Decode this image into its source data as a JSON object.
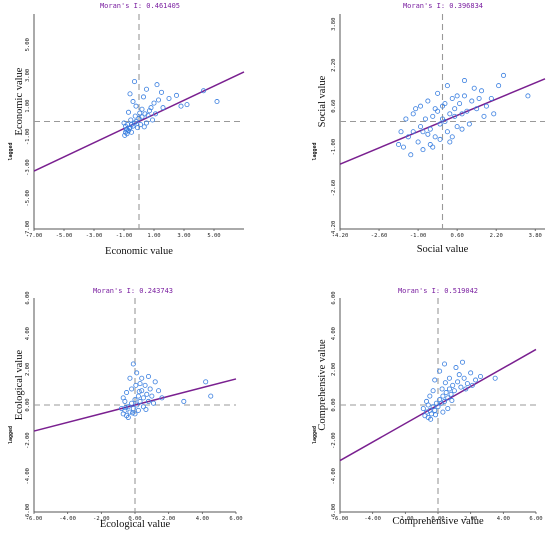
{
  "chart_data": [
    {
      "type": "scatter",
      "title": "Moran's I: 0.461405",
      "xlabel": "Economic value",
      "ylabel": "Economic value",
      "ylabel_prefix": "lagged",
      "xlim": [
        -7,
        7
      ],
      "ylim": [
        -7,
        7
      ],
      "xticks": [
        "-7.00",
        "-5.00",
        "-3.00",
        "-1.00",
        "1.00",
        "3.00",
        "5.00"
      ],
      "yticks": [
        "-7.00",
        "-5.00",
        "-3.00",
        "-1.00",
        "1.00",
        "3.00",
        "5.00"
      ],
      "slope": 0.461405,
      "colors": {
        "points": "#3a7fe0",
        "line": "#7a2090",
        "title": "#7a1fa0"
      },
      "points": [
        [
          -0.9,
          -0.7
        ],
        [
          -0.8,
          -0.5
        ],
        [
          -0.7,
          -0.6
        ],
        [
          -0.9,
          -0.3
        ],
        [
          -0.6,
          -0.4
        ],
        [
          -0.5,
          -0.2
        ],
        [
          -0.8,
          -0.8
        ],
        [
          -0.4,
          -0.3
        ],
        [
          -0.3,
          -0.1
        ],
        [
          -0.2,
          0.0
        ],
        [
          0.0,
          0.2
        ],
        [
          0.2,
          0.3
        ],
        [
          0.4,
          0.5
        ],
        [
          0.6,
          0.4
        ],
        [
          0.8,
          0.9
        ],
        [
          1.0,
          1.2
        ],
        [
          1.3,
          1.4
        ],
        [
          1.6,
          0.9
        ],
        [
          2.0,
          1.5
        ],
        [
          2.5,
          1.7
        ],
        [
          3.2,
          1.1
        ],
        [
          4.3,
          2.0
        ],
        [
          5.2,
          1.3
        ],
        [
          1.2,
          2.4
        ],
        [
          0.5,
          2.1
        ],
        [
          -0.6,
          1.8
        ],
        [
          -0.3,
          2.6
        ],
        [
          -0.7,
          0.6
        ],
        [
          -0.2,
          1.0
        ],
        [
          0.3,
          1.6
        ],
        [
          0.9,
          0.1
        ],
        [
          -1.0,
          -0.1
        ],
        [
          -0.95,
          -0.9
        ],
        [
          -0.5,
          -0.7
        ],
        [
          -0.1,
          -0.4
        ],
        [
          0.1,
          -0.2
        ],
        [
          0.7,
          0.7
        ],
        [
          1.5,
          1.9
        ],
        [
          -0.4,
          1.3
        ],
        [
          0.2,
          0.8
        ],
        [
          -0.75,
          -0.2
        ],
        [
          -0.65,
          -0.45
        ],
        [
          -0.55,
          0.1
        ],
        [
          -0.85,
          -0.55
        ],
        [
          0.5,
          -0.1
        ],
        [
          1.1,
          0.5
        ],
        [
          2.8,
          1.0
        ],
        [
          0.05,
          0.55
        ],
        [
          -0.25,
          0.35
        ],
        [
          0.35,
          -0.35
        ]
      ]
    },
    {
      "type": "scatter",
      "title": "Moran's I: 0.396834",
      "xlabel": "Social value",
      "ylabel": "Social value",
      "ylabel_prefix": "lagged",
      "xlim": [
        -4.2,
        4.2
      ],
      "ylim": [
        -4.2,
        4.2
      ],
      "xticks": [
        "-4.20",
        "-2.60",
        "-1.00",
        "0.60",
        "2.20",
        "3.80"
      ],
      "yticks": [
        "-4.20",
        "-2.60",
        "-1.00",
        "0.60",
        "2.20",
        "3.80"
      ],
      "slope": 0.396834,
      "colors": {
        "points": "#3a7fe0",
        "line": "#7a2090",
        "title": "#7a1fa0"
      },
      "points": [
        [
          -1.6,
          -1.0
        ],
        [
          -1.4,
          -0.6
        ],
        [
          -1.3,
          -1.3
        ],
        [
          -1.2,
          -0.4
        ],
        [
          -1.0,
          -0.8
        ],
        [
          -0.9,
          -0.2
        ],
        [
          -0.8,
          -1.1
        ],
        [
          -0.7,
          0.1
        ],
        [
          -0.6,
          -0.5
        ],
        [
          -0.5,
          -0.3
        ],
        [
          -0.4,
          0.2
        ],
        [
          -0.3,
          -0.6
        ],
        [
          -0.2,
          0.4
        ],
        [
          -0.1,
          -0.1
        ],
        [
          0.0,
          0.6
        ],
        [
          0.1,
          0.0
        ],
        [
          0.2,
          -0.4
        ],
        [
          0.3,
          0.3
        ],
        [
          0.4,
          0.9
        ],
        [
          0.5,
          0.2
        ],
        [
          0.6,
          -0.2
        ],
        [
          0.7,
          0.7
        ],
        [
          0.8,
          0.3
        ],
        [
          0.9,
          1.0
        ],
        [
          1.0,
          0.4
        ],
        [
          1.1,
          -0.1
        ],
        [
          1.2,
          0.8
        ],
        [
          1.4,
          0.5
        ],
        [
          1.6,
          1.2
        ],
        [
          1.8,
          0.6
        ],
        [
          2.0,
          0.9
        ],
        [
          2.3,
          1.4
        ],
        [
          2.5,
          1.8
        ],
        [
          3.5,
          1.0
        ],
        [
          -1.8,
          -0.9
        ],
        [
          -1.5,
          0.1
        ],
        [
          -1.1,
          0.5
        ],
        [
          -0.6,
          0.8
        ],
        [
          -0.2,
          1.1
        ],
        [
          0.2,
          1.4
        ],
        [
          0.6,
          1.0
        ],
        [
          0.3,
          -0.8
        ],
        [
          -0.4,
          -1.0
        ],
        [
          -1.2,
          0.3
        ],
        [
          -0.8,
          -0.4
        ],
        [
          0.0,
          0.1
        ],
        [
          0.4,
          -0.6
        ],
        [
          0.8,
          -0.3
        ],
        [
          1.3,
          1.3
        ],
        [
          1.7,
          0.2
        ],
        [
          -0.3,
          0.5
        ],
        [
          -0.9,
          0.6
        ],
        [
          0.9,
          1.6
        ],
        [
          1.5,
          0.9
        ],
        [
          -1.7,
          -0.4
        ],
        [
          -0.5,
          -0.9
        ],
        [
          0.1,
          0.7
        ],
        [
          0.5,
          0.5
        ],
        [
          -0.1,
          -0.7
        ],
        [
          2.1,
          0.3
        ]
      ]
    },
    {
      "type": "scatter",
      "title": "Moran's I: 0.243743",
      "xlabel": "Ecological value",
      "ylabel": "Ecological value",
      "ylabel_prefix": "lagged",
      "xlim": [
        -6,
        6
      ],
      "ylim": [
        -6,
        6
      ],
      "xticks": [
        "-6.00",
        "-4.00",
        "-2.00",
        "0.00",
        "2.00",
        "4.00",
        "6.00"
      ],
      "yticks": [
        "-6.00",
        "-4.00",
        "-2.00",
        "0.00",
        "2.00",
        "4.00",
        "6.00"
      ],
      "slope": 0.243743,
      "colors": {
        "points": "#3a7fe0",
        "line": "#7a2090",
        "title": "#7a1fa0"
      },
      "points": [
        [
          -0.7,
          -0.5
        ],
        [
          -0.6,
          -0.3
        ],
        [
          -0.5,
          -0.6
        ],
        [
          -0.4,
          -0.1
        ],
        [
          -0.3,
          -0.4
        ],
        [
          -0.2,
          0.1
        ],
        [
          -0.1,
          -0.2
        ],
        [
          0.0,
          0.3
        ],
        [
          0.1,
          0.0
        ],
        [
          0.2,
          0.5
        ],
        [
          0.3,
          0.2
        ],
        [
          0.4,
          0.8
        ],
        [
          0.5,
          0.4
        ],
        [
          0.6,
          1.1
        ],
        [
          0.7,
          0.6
        ],
        [
          0.8,
          0.2
        ],
        [
          0.9,
          0.9
        ],
        [
          1.0,
          0.5
        ],
        [
          1.2,
          1.3
        ],
        [
          1.4,
          0.8
        ],
        [
          -0.3,
          1.5
        ],
        [
          -0.1,
          2.3
        ],
        [
          0.1,
          1.8
        ],
        [
          0.3,
          1.2
        ],
        [
          -0.5,
          0.7
        ],
        [
          -0.6,
          0.2
        ],
        [
          -0.8,
          -0.2
        ],
        [
          2.9,
          0.2
        ],
        [
          4.2,
          1.3
        ],
        [
          4.5,
          0.5
        ],
        [
          -0.4,
          -0.7
        ],
        [
          0.0,
          -0.5
        ],
        [
          0.2,
          -0.3
        ],
        [
          0.5,
          -0.1
        ],
        [
          1.1,
          0.1
        ],
        [
          -0.2,
          0.9
        ],
        [
          0.4,
          1.5
        ],
        [
          0.8,
          1.6
        ],
        [
          -0.7,
          0.4
        ],
        [
          -0.15,
          -0.45
        ],
        [
          0.25,
          0.75
        ],
        [
          0.65,
          -0.25
        ],
        [
          1.6,
          0.4
        ],
        [
          -0.55,
          -0.15
        ],
        [
          0.05,
          1.1
        ]
      ]
    },
    {
      "type": "scatter",
      "title": "Moran's I: 0.519042",
      "xlabel": "Comprehensive value",
      "ylabel": "Comprehensive value",
      "ylabel_prefix": "lagged",
      "xlim": [
        -6,
        6
      ],
      "ylim": [
        -6,
        6
      ],
      "xticks": [
        "-6.00",
        "-4.00",
        "-2.00",
        "0.00",
        "2.00",
        "4.00",
        "6.00"
      ],
      "yticks": [
        "-6.00",
        "-4.00",
        "-2.00",
        "0.00",
        "2.00",
        "4.00",
        "6.00"
      ],
      "slope": 0.519042,
      "colors": {
        "points": "#3a7fe0",
        "line": "#7a2090",
        "title": "#7a1fa0"
      },
      "points": [
        [
          -0.8,
          -0.6
        ],
        [
          -0.7,
          -0.4
        ],
        [
          -0.6,
          -0.7
        ],
        [
          -0.5,
          -0.3
        ],
        [
          -0.4,
          -0.5
        ],
        [
          -0.3,
          -0.1
        ],
        [
          -0.2,
          -0.3
        ],
        [
          -0.1,
          0.1
        ],
        [
          0.0,
          -0.1
        ],
        [
          0.1,
          0.3
        ],
        [
          0.2,
          0.1
        ],
        [
          0.3,
          0.5
        ],
        [
          0.4,
          0.2
        ],
        [
          0.5,
          0.7
        ],
        [
          0.6,
          0.4
        ],
        [
          0.7,
          0.9
        ],
        [
          0.8,
          0.6
        ],
        [
          0.9,
          1.1
        ],
        [
          1.0,
          0.8
        ],
        [
          1.2,
          1.3
        ],
        [
          1.4,
          1.0
        ],
        [
          1.6,
          1.5
        ],
        [
          1.8,
          1.2
        ],
        [
          2.0,
          1.8
        ],
        [
          2.3,
          1.4
        ],
        [
          2.6,
          1.6
        ],
        [
          3.5,
          1.5
        ],
        [
          -0.2,
          1.4
        ],
        [
          0.1,
          1.9
        ],
        [
          0.4,
          2.3
        ],
        [
          1.1,
          2.1
        ],
        [
          1.5,
          2.4
        ],
        [
          -0.5,
          0.5
        ],
        [
          -0.7,
          0.2
        ],
        [
          -0.9,
          -0.2
        ],
        [
          0.3,
          -0.4
        ],
        [
          0.6,
          -0.2
        ],
        [
          -0.3,
          0.8
        ],
        [
          0.7,
          1.5
        ],
        [
          1.3,
          1.7
        ],
        [
          -0.45,
          -0.8
        ],
        [
          -0.15,
          -0.55
        ],
        [
          0.25,
          0.9
        ],
        [
          0.85,
          0.25
        ],
        [
          1.7,
          0.9
        ],
        [
          -0.6,
          0.0
        ],
        [
          0.45,
          1.25
        ],
        [
          2.1,
          1.1
        ]
      ]
    }
  ]
}
